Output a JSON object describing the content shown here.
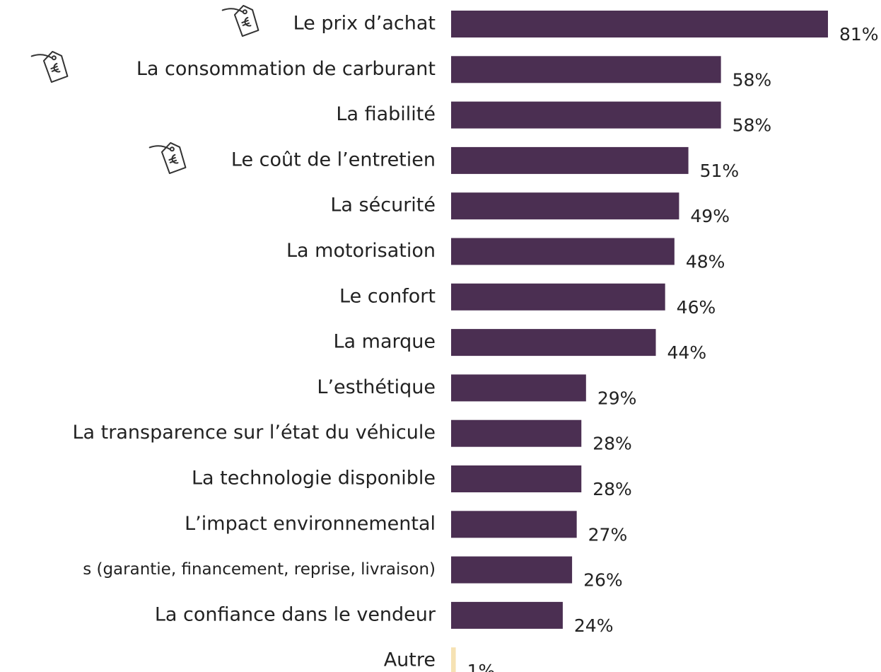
{
  "chart_data": {
    "type": "barh",
    "categories": [
      "Le prix d’achat",
      "La consommation de carburant",
      "La fiabilité",
      "Le coût de l’entretien",
      "La sécurité",
      "La motorisation",
      "Le confort",
      "La marque",
      "L’esthétique",
      "La transparence sur l’état du véhicule",
      "La technologie disponible",
      "L’impact environnemental",
      "s (garantie, financement, reprise, livraison)",
      "La confiance dans le vendeur",
      "Autre"
    ],
    "values": [
      81,
      58,
      58,
      51,
      49,
      48,
      46,
      44,
      29,
      28,
      28,
      27,
      26,
      24,
      1
    ],
    "value_labels": [
      "81%",
      "58%",
      "58%",
      "51%",
      "49%",
      "48%",
      "46%",
      "44%",
      "29%",
      "28%",
      "28%",
      "27%",
      "26%",
      "24%",
      "1%"
    ],
    "colors": [
      "#4b2f52",
      "#4b2f52",
      "#4b2f52",
      "#4b2f52",
      "#4b2f52",
      "#4b2f52",
      "#4b2f52",
      "#4b2f52",
      "#4b2f52",
      "#4b2f52",
      "#4b2f52",
      "#4b2f52",
      "#4b2f52",
      "#4b2f52",
      "#f6e2b3"
    ]
  }
}
